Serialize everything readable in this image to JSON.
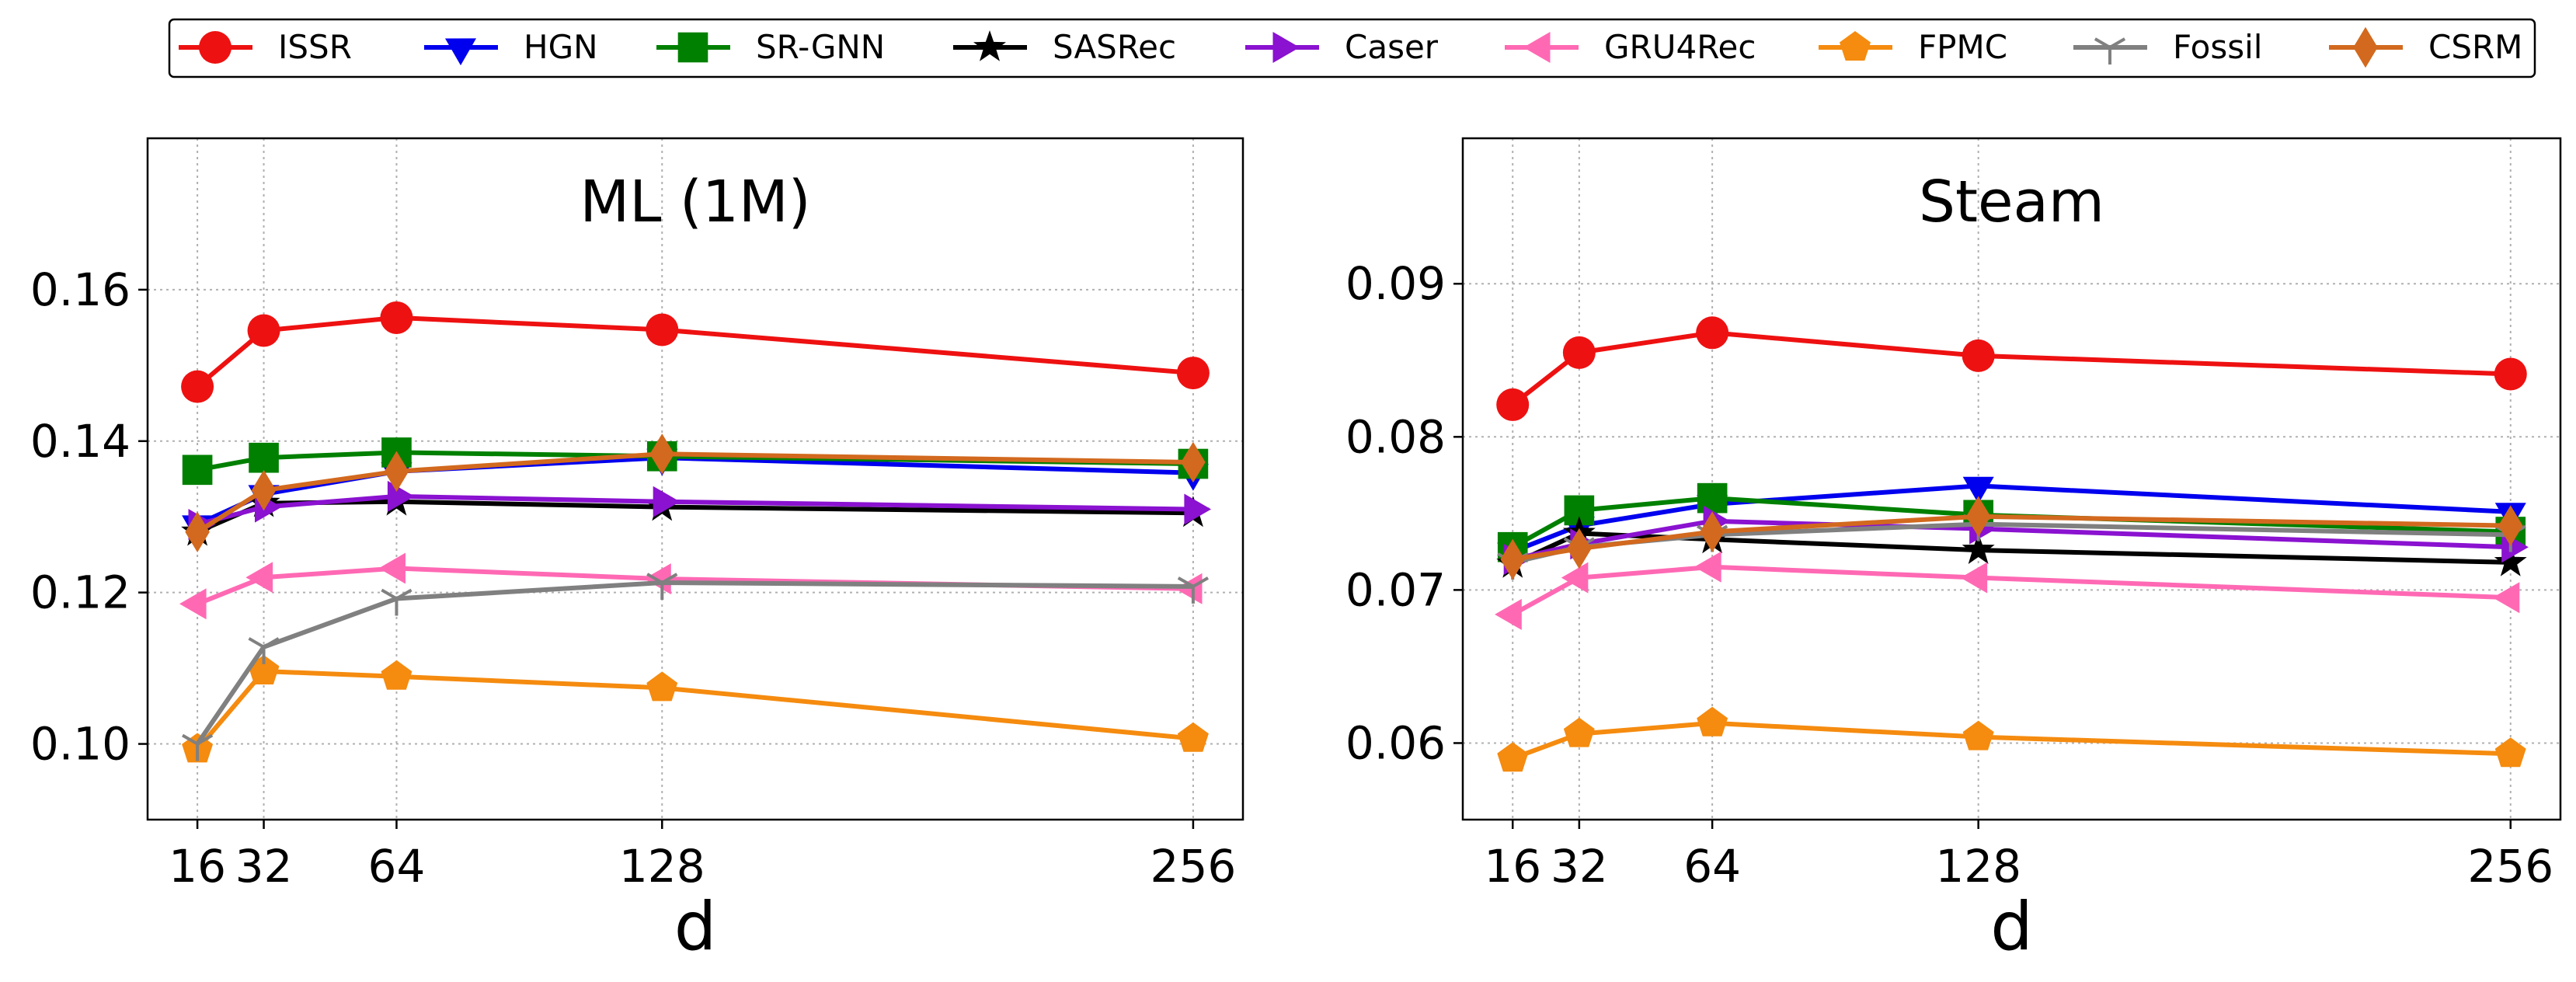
{
  "legend": {
    "placement": "top-center",
    "entries": [
      {
        "name": "ISSR",
        "color": "#ee1111",
        "marker": "circle"
      },
      {
        "name": "HGN",
        "color": "#0000ee",
        "marker": "triangle-down"
      },
      {
        "name": "SR-GNN",
        "color": "#008000",
        "marker": "square"
      },
      {
        "name": "SASRec",
        "color": "#000000",
        "marker": "star"
      },
      {
        "name": "Caser",
        "color": "#8a12d0",
        "marker": "triangle-right"
      },
      {
        "name": "GRU4Rec",
        "color": "#ff69b4",
        "marker": "triangle-left"
      },
      {
        "name": "FPMC",
        "color": "#f58b0f",
        "marker": "pentagon"
      },
      {
        "name": "Fossil",
        "color": "#808080",
        "marker": "tri-down"
      },
      {
        "name": "CSRM",
        "color": "#d2691e",
        "marker": "thin-diamond"
      }
    ]
  },
  "chart_data": [
    {
      "type": "line",
      "title": "ML (1M)",
      "xlabel": "d",
      "ylabel": "",
      "x": [
        16,
        32,
        64,
        128,
        256
      ],
      "xticks": [
        "16",
        "32",
        "64",
        "128",
        "256"
      ],
      "xlim": [
        4,
        268
      ],
      "ylim": [
        0.09,
        0.18
      ],
      "yticks": [
        0.1,
        0.12,
        0.14,
        0.16
      ],
      "yticklabels": [
        "0.10",
        "0.12",
        "0.14",
        "0.16"
      ],
      "grid": true,
      "series": [
        {
          "name": "ISSR",
          "values": [
            0.1472,
            0.1546,
            0.1563,
            0.1547,
            0.149
          ]
        },
        {
          "name": "HGN",
          "values": [
            0.129,
            0.133,
            0.136,
            0.1378,
            0.1358
          ]
        },
        {
          "name": "SR-GNN",
          "values": [
            0.1362,
            0.1378,
            0.1385,
            0.138,
            0.137
          ]
        },
        {
          "name": "SASRec",
          "values": [
            0.128,
            0.1318,
            0.132,
            0.1313,
            0.1305
          ]
        },
        {
          "name": "Caser",
          "values": [
            0.129,
            0.1313,
            0.1327,
            0.132,
            0.131
          ]
        },
        {
          "name": "GRU4Rec",
          "values": [
            0.1185,
            0.122,
            0.1232,
            0.1218,
            0.1205
          ]
        },
        {
          "name": "FPMC",
          "values": [
            0.0993,
            0.1096,
            0.1089,
            0.1074,
            0.1007
          ]
        },
        {
          "name": "Fossil",
          "values": [
            0.1,
            0.1128,
            0.1192,
            0.1213,
            0.1208
          ]
        },
        {
          "name": "CSRM",
          "values": [
            0.128,
            0.1335,
            0.136,
            0.1383,
            0.1372
          ]
        }
      ]
    },
    {
      "type": "line",
      "title": "Steam",
      "xlabel": "d",
      "ylabel": "",
      "x": [
        16,
        32,
        64,
        128,
        256
      ],
      "xticks": [
        "16",
        "32",
        "64",
        "128",
        "256"
      ],
      "xlim": [
        4,
        268
      ],
      "ylim": [
        0.055,
        0.0995
      ],
      "yticks": [
        0.06,
        0.07,
        0.08,
        0.09
      ],
      "yticklabels": [
        "0.06",
        "0.07",
        "0.08",
        "0.09"
      ],
      "grid": true,
      "series": [
        {
          "name": "ISSR",
          "values": [
            0.0821,
            0.0855,
            0.0868,
            0.0853,
            0.0841
          ]
        },
        {
          "name": "HGN",
          "values": [
            0.0725,
            0.0742,
            0.0756,
            0.0768,
            0.0751
          ]
        },
        {
          "name": "SR-GNN",
          "values": [
            0.0728,
            0.0752,
            0.076,
            0.0749,
            0.0738
          ]
        },
        {
          "name": "SASRec",
          "values": [
            0.0717,
            0.0737,
            0.0733,
            0.0726,
            0.0718
          ]
        },
        {
          "name": "Caser",
          "values": [
            0.072,
            0.073,
            0.0745,
            0.074,
            0.0728
          ]
        },
        {
          "name": "GRU4Rec",
          "values": [
            0.0684,
            0.0708,
            0.0715,
            0.0708,
            0.0695
          ]
        },
        {
          "name": "FPMC",
          "values": [
            0.059,
            0.0606,
            0.0613,
            0.0604,
            0.0593
          ]
        },
        {
          "name": "Fossil",
          "values": [
            0.0718,
            0.0728,
            0.0736,
            0.0743,
            0.0736
          ]
        },
        {
          "name": "CSRM",
          "values": [
            0.072,
            0.0727,
            0.0738,
            0.0748,
            0.0742
          ]
        }
      ]
    }
  ]
}
